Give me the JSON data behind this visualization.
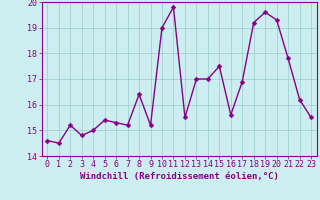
{
  "x": [
    0,
    1,
    2,
    3,
    4,
    5,
    6,
    7,
    8,
    9,
    10,
    11,
    12,
    13,
    14,
    15,
    16,
    17,
    18,
    19,
    20,
    21,
    22,
    23
  ],
  "y": [
    14.6,
    14.5,
    15.2,
    14.8,
    15.0,
    15.4,
    15.3,
    15.2,
    16.4,
    15.2,
    19.0,
    19.8,
    15.5,
    17.0,
    17.0,
    17.5,
    15.6,
    16.9,
    19.2,
    19.6,
    19.3,
    17.8,
    16.2,
    15.5
  ],
  "line_color": "#880088",
  "marker_color": "#880088",
  "bg_color": "#cceef0",
  "grid_color": "#99cccc",
  "xlabel": "Windchill (Refroidissement éolien,°C)",
  "ylim": [
    14,
    20
  ],
  "xlim": [
    -0.5,
    23.5
  ],
  "yticks": [
    14,
    15,
    16,
    17,
    18,
    19,
    20
  ],
  "xticks": [
    0,
    1,
    2,
    3,
    4,
    5,
    6,
    7,
    8,
    9,
    10,
    11,
    12,
    13,
    14,
    15,
    16,
    17,
    18,
    19,
    20,
    21,
    22,
    23
  ],
  "xlabel_color": "#880088",
  "tick_color": "#880088",
  "axis_spine_color": "#880088",
  "font_size_xlabel": 6.5,
  "font_size_ticks": 6.0,
  "line_width": 1.0,
  "marker_size": 2.5
}
